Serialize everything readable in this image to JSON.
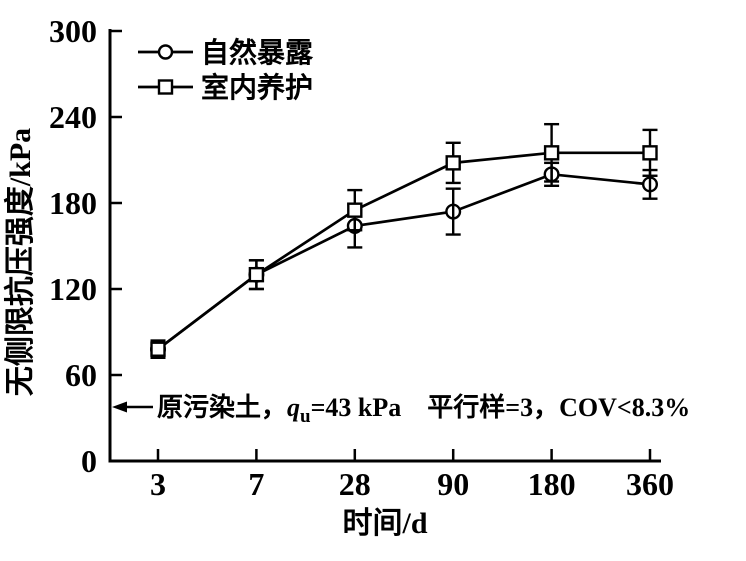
{
  "figure": {
    "background": "#ffffff",
    "ink": "#000000"
  },
  "chart_data": {
    "type": "line",
    "title": "",
    "xlabel": "时间/d",
    "ylabel": "无侧限抗压强度/kPa",
    "x_categories": [
      "3",
      "7",
      "28",
      "90",
      "180",
      "360"
    ],
    "x_values_days": [
      3,
      7,
      28,
      90,
      180,
      360
    ],
    "y_ticks": [
      "0",
      "60",
      "120",
      "180",
      "240",
      "300"
    ],
    "ylim": [
      0,
      300
    ],
    "grid": false,
    "legend_position": "top-left-inside",
    "marker_style": "open-black-on-white",
    "series": [
      {
        "name": "自然暴露",
        "marker": "circle",
        "values": [
          78,
          130,
          164,
          174,
          200,
          193
        ],
        "errors": [
          6,
          10,
          15,
          16,
          8,
          10
        ]
      },
      {
        "name": "室内养护",
        "marker": "square",
        "values": [
          78,
          130,
          175,
          208,
          215,
          215
        ],
        "errors": [
          6,
          10,
          14,
          14,
          20,
          16
        ]
      }
    ],
    "annotation": {
      "arrow_direction": "left-to-y-axis",
      "prefix": "原污染土，",
      "variable": "q",
      "subscript": "u",
      "equals": "=43 kPa",
      "note": "平行样=3，COV<8.3%",
      "points_to_kpa": 38
    }
  }
}
